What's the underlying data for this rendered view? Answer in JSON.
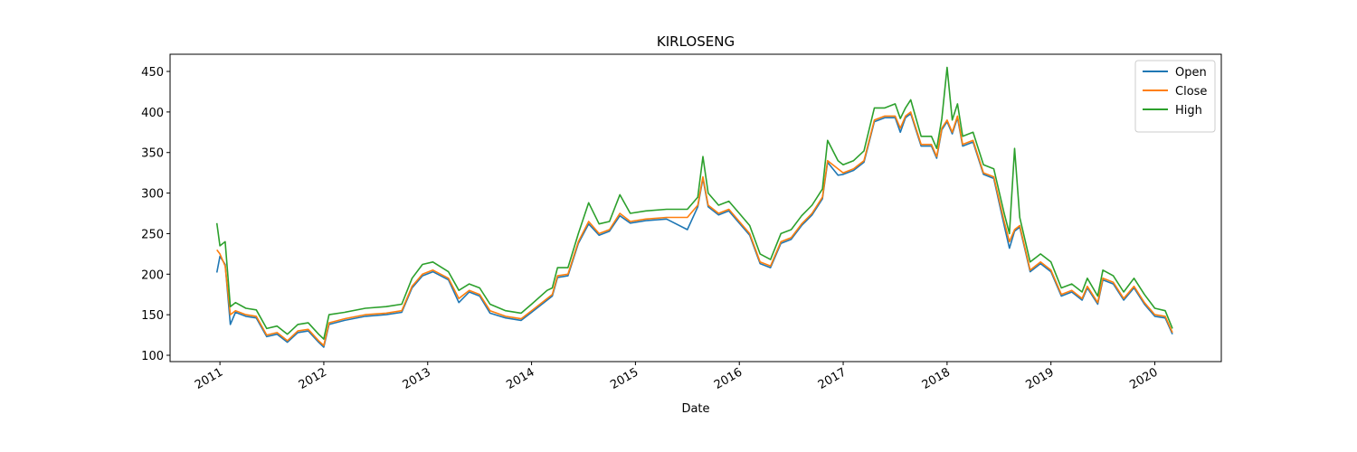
{
  "chart_data": {
    "type": "line",
    "title": "KIRLOSENG",
    "xlabel": "Date",
    "x": [
      2010.97,
      2011.0,
      2011.05,
      2011.1,
      2011.15,
      2011.25,
      2011.35,
      2011.45,
      2011.55,
      2011.65,
      2011.75,
      2011.85,
      2011.95,
      2012.0,
      2012.05,
      2012.2,
      2012.4,
      2012.6,
      2012.75,
      2012.85,
      2012.95,
      2013.05,
      2013.2,
      2013.3,
      2013.4,
      2013.5,
      2013.6,
      2013.75,
      2013.9,
      2014.0,
      2014.15,
      2014.2,
      2014.25,
      2014.35,
      2014.45,
      2014.55,
      2014.65,
      2014.75,
      2014.85,
      2014.95,
      2015.1,
      2015.3,
      2015.5,
      2015.6,
      2015.65,
      2015.7,
      2015.8,
      2015.9,
      2016.0,
      2016.1,
      2016.2,
      2016.3,
      2016.4,
      2016.5,
      2016.6,
      2016.7,
      2016.8,
      2016.85,
      2016.95,
      2017.0,
      2017.1,
      2017.2,
      2017.3,
      2017.4,
      2017.5,
      2017.55,
      2017.6,
      2017.65,
      2017.75,
      2017.85,
      2017.9,
      2017.95,
      2018.0,
      2018.05,
      2018.1,
      2018.15,
      2018.25,
      2018.35,
      2018.45,
      2018.55,
      2018.6,
      2018.65,
      2018.7,
      2018.8,
      2018.9,
      2019.0,
      2019.1,
      2019.2,
      2019.3,
      2019.35,
      2019.45,
      2019.5,
      2019.6,
      2019.7,
      2019.8,
      2019.9,
      2020.0,
      2020.1,
      2020.17
    ],
    "series": [
      {
        "name": "Open",
        "color": "#1f77b4",
        "values": [
          202,
          222,
          212,
          138,
          153,
          148,
          146,
          123,
          126,
          116,
          128,
          130,
          116,
          110,
          138,
          143,
          148,
          150,
          153,
          183,
          198,
          203,
          193,
          165,
          178,
          173,
          152,
          146,
          143,
          153,
          168,
          173,
          196,
          198,
          238,
          262,
          248,
          253,
          272,
          263,
          266,
          268,
          255,
          283,
          318,
          283,
          273,
          278,
          263,
          248,
          213,
          208,
          238,
          243,
          260,
          273,
          293,
          338,
          322,
          323,
          328,
          338,
          388,
          393,
          393,
          375,
          393,
          398,
          358,
          358,
          343,
          378,
          388,
          373,
          393,
          358,
          363,
          323,
          318,
          260,
          232,
          253,
          258,
          203,
          213,
          203,
          173,
          178,
          168,
          183,
          163,
          193,
          188,
          168,
          183,
          163,
          148,
          146,
          126
        ]
      },
      {
        "name": "Close",
        "color": "#ff7f0e",
        "values": [
          230,
          225,
          210,
          150,
          155,
          150,
          148,
          125,
          128,
          118,
          130,
          132,
          118,
          112,
          140,
          145,
          150,
          152,
          155,
          185,
          200,
          205,
          195,
          170,
          180,
          175,
          155,
          148,
          145,
          155,
          170,
          175,
          198,
          200,
          240,
          265,
          250,
          255,
          275,
          265,
          268,
          270,
          270,
          285,
          320,
          285,
          275,
          280,
          265,
          250,
          215,
          210,
          240,
          245,
          262,
          275,
          295,
          340,
          330,
          325,
          330,
          340,
          390,
          395,
          395,
          380,
          395,
          400,
          360,
          360,
          345,
          380,
          390,
          375,
          395,
          360,
          365,
          325,
          320,
          265,
          240,
          255,
          260,
          205,
          215,
          205,
          175,
          180,
          170,
          185,
          165,
          195,
          190,
          170,
          185,
          165,
          150,
          148,
          128
        ]
      },
      {
        "name": "High",
        "color": "#2ca02c",
        "values": [
          263,
          235,
          240,
          160,
          165,
          158,
          156,
          133,
          136,
          126,
          138,
          140,
          126,
          120,
          150,
          153,
          158,
          160,
          163,
          195,
          212,
          215,
          203,
          180,
          188,
          183,
          163,
          155,
          152,
          163,
          180,
          183,
          208,
          208,
          250,
          288,
          262,
          265,
          298,
          275,
          278,
          280,
          280,
          295,
          345,
          300,
          285,
          290,
          275,
          260,
          225,
          218,
          250,
          255,
          272,
          285,
          305,
          365,
          340,
          335,
          340,
          352,
          405,
          405,
          410,
          392,
          405,
          415,
          370,
          370,
          355,
          392,
          455,
          390,
          410,
          370,
          375,
          335,
          330,
          275,
          250,
          355,
          270,
          215,
          225,
          215,
          183,
          188,
          178,
          195,
          173,
          205,
          198,
          178,
          195,
          175,
          158,
          155,
          133
        ]
      }
    ],
    "xlim": [
      2010.52,
      2020.64
    ],
    "xticks": [
      2011,
      2012,
      2013,
      2014,
      2015,
      2016,
      2017,
      2018,
      2019,
      2020
    ],
    "ylim": [
      92.2,
      471.2
    ],
    "yticks": [
      100,
      150,
      200,
      250,
      300,
      350,
      400,
      450
    ],
    "legend": "upper right"
  }
}
